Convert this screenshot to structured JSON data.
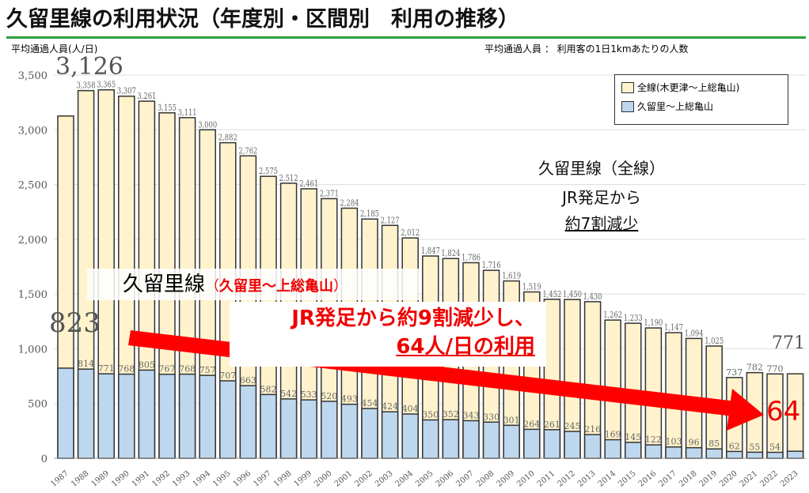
{
  "title": "久留里線の利用状況（年度別・区間別　利用の推移）",
  "y_unit_label": "平均通過人員(人/日)",
  "definition_note": "平均通過人員 ： 利用客の1日1kmあたりの人数",
  "side_text": {
    "line1": "久留里線（全線）",
    "line2": "JR発足から",
    "line3": "約7割減少"
  },
  "section_label": {
    "main": "久留里線",
    "paren_open": "（",
    "section": "久留里～上総亀山",
    "paren_close": "）"
  },
  "callout": {
    "line1": "JR発足から約9割減少し、",
    "line2": "64人/日の利用"
  },
  "highlights": {
    "total_1987": "3,126",
    "section_1987": "823",
    "total_2023": "771",
    "section_2023": "64"
  },
  "colors": {
    "total": "#fff2cc",
    "section": "#bdd7ee",
    "arrow": "#ff0000",
    "title_rule": "#2e9e3e"
  },
  "chart_data": {
    "type": "bar",
    "ylim": [
      0,
      3500
    ],
    "yticks": [
      "0",
      "500",
      "1,000",
      "1,500",
      "2,000",
      "2,500",
      "3,000",
      "3,500"
    ],
    "categories": [
      "1987",
      "1988",
      "1989",
      "1990",
      "1991",
      "1992",
      "1993",
      "1994",
      "1995",
      "1996",
      "1997",
      "1998",
      "1999",
      "2000",
      "2001",
      "2002",
      "2003",
      "2004",
      "2005",
      "2006",
      "2007",
      "2008",
      "2009",
      "2010",
      "2011",
      "2012",
      "2013",
      "2014",
      "2015",
      "2016",
      "2017",
      "2018",
      "2019",
      "2020",
      "2021",
      "2022",
      "2023"
    ],
    "series": [
      {
        "name": "全線(木更津～上総亀山)",
        "values": [
          3126,
          3358,
          3365,
          3307,
          3261,
          3155,
          3111,
          3000,
          2882,
          2762,
          2575,
          2512,
          2461,
          2371,
          2284,
          2185,
          2127,
          2012,
          1847,
          1824,
          1786,
          1716,
          1619,
          1519,
          1452,
          1450,
          1430,
          1262,
          1233,
          1190,
          1147,
          1094,
          1025,
          737,
          782,
          770,
          771
        ]
      },
      {
        "name": "久留里～上総亀山",
        "values": [
          823,
          814,
          771,
          768,
          805,
          767,
          768,
          757,
          707,
          663,
          582,
          542,
          533,
          520,
          493,
          454,
          424,
          404,
          350,
          352,
          343,
          330,
          301,
          264,
          261,
          245,
          216,
          169,
          145,
          122,
          103,
          96,
          85,
          62,
          55,
          54,
          64
        ]
      }
    ],
    "grid": true,
    "legend": "top-right"
  }
}
